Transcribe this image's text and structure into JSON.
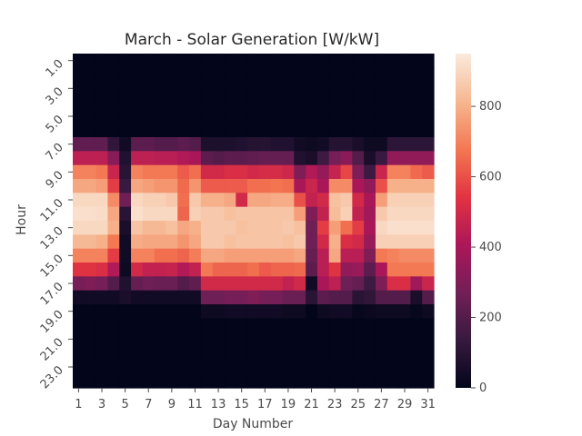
{
  "chart_data": {
    "type": "heatmap",
    "title": "March - Solar Generation [W/kW]",
    "xlabel": "Day Number",
    "ylabel": "Hour",
    "x": [
      1,
      2,
      3,
      4,
      5,
      6,
      7,
      8,
      9,
      10,
      11,
      12,
      13,
      14,
      15,
      16,
      17,
      18,
      19,
      20,
      21,
      22,
      23,
      24,
      25,
      26,
      27,
      28,
      29,
      30,
      31
    ],
    "x_tick_labels": [
      "1",
      "3",
      "5",
      "7",
      "9",
      "11",
      "13",
      "15",
      "17",
      "19",
      "21",
      "23",
      "25",
      "27",
      "29",
      "31"
    ],
    "y": [
      1,
      2,
      3,
      4,
      5,
      6,
      7,
      8,
      9,
      10,
      11,
      12,
      13,
      14,
      15,
      16,
      17,
      18,
      19,
      20,
      21,
      22,
      23,
      24
    ],
    "y_tick_labels": [
      "1.0",
      "3.0",
      "5.0",
      "7.0",
      "9.0",
      "11.0",
      "13.0",
      "15.0",
      "17.0",
      "19.0",
      "21.0",
      "23.0"
    ],
    "colorbar": {
      "range": [
        0,
        950
      ],
      "ticks": [
        0,
        200,
        400,
        600,
        800
      ],
      "tick_labels": [
        "0",
        "200",
        "400",
        "600",
        "800"
      ],
      "colormap": "rocket"
    },
    "values": [
      [
        0,
        0,
        0,
        0,
        0,
        0,
        0,
        0,
        0,
        0,
        0,
        0,
        0,
        0,
        0,
        0,
        0,
        0,
        0,
        0,
        0,
        0,
        0,
        0,
        0,
        0,
        0,
        0,
        0,
        0,
        0
      ],
      [
        0,
        0,
        0,
        0,
        0,
        0,
        0,
        0,
        0,
        0,
        0,
        0,
        0,
        0,
        0,
        0,
        0,
        0,
        0,
        0,
        0,
        0,
        0,
        0,
        0,
        0,
        0,
        0,
        0,
        0,
        0
      ],
      [
        0,
        0,
        0,
        0,
        0,
        0,
        0,
        0,
        0,
        0,
        0,
        0,
        0,
        0,
        0,
        0,
        0,
        0,
        0,
        0,
        0,
        0,
        0,
        0,
        0,
        0,
        0,
        0,
        0,
        0,
        0
      ],
      [
        0,
        0,
        0,
        0,
        0,
        0,
        0,
        0,
        0,
        0,
        0,
        0,
        0,
        0,
        0,
        0,
        0,
        0,
        0,
        0,
        0,
        0,
        0,
        0,
        0,
        0,
        0,
        0,
        0,
        0,
        0
      ],
      [
        0,
        0,
        0,
        0,
        0,
        0,
        0,
        0,
        0,
        0,
        0,
        0,
        0,
        0,
        0,
        0,
        0,
        0,
        0,
        0,
        0,
        0,
        0,
        0,
        0,
        0,
        0,
        0,
        0,
        0,
        0
      ],
      [
        0,
        0,
        0,
        0,
        0,
        0,
        0,
        0,
        0,
        0,
        0,
        0,
        0,
        0,
        0,
        0,
        0,
        0,
        0,
        0,
        0,
        0,
        0,
        0,
        0,
        0,
        0,
        0,
        0,
        0,
        0
      ],
      [
        230,
        230,
        230,
        120,
        40,
        220,
        220,
        200,
        200,
        220,
        200,
        70,
        70,
        70,
        80,
        90,
        90,
        80,
        80,
        40,
        30,
        40,
        90,
        90,
        60,
        30,
        30,
        110,
        110,
        110,
        110
      ],
      [
        450,
        450,
        450,
        320,
        80,
        450,
        450,
        440,
        440,
        420,
        400,
        220,
        200,
        220,
        220,
        230,
        240,
        240,
        240,
        80,
        60,
        150,
        280,
        330,
        200,
        60,
        140,
        340,
        340,
        340,
        340
      ],
      [
        700,
        700,
        680,
        480,
        100,
        700,
        680,
        680,
        680,
        620,
        660,
        500,
        500,
        520,
        520,
        500,
        510,
        510,
        490,
        300,
        420,
        350,
        470,
        580,
        300,
        150,
        480,
        700,
        700,
        650,
        620
      ],
      [
        780,
        780,
        760,
        560,
        140,
        780,
        760,
        740,
        740,
        650,
        740,
        620,
        620,
        620,
        620,
        660,
        660,
        670,
        660,
        400,
        480,
        400,
        720,
        720,
        400,
        340,
        600,
        800,
        800,
        800,
        800
      ],
      [
        900,
        900,
        900,
        720,
        260,
        900,
        880,
        880,
        860,
        660,
        860,
        800,
        800,
        780,
        500,
        780,
        780,
        790,
        790,
        600,
        460,
        500,
        840,
        860,
        500,
        400,
        760,
        880,
        880,
        880,
        880
      ],
      [
        920,
        920,
        910,
        780,
        100,
        920,
        900,
        900,
        900,
        640,
        880,
        860,
        860,
        840,
        850,
        850,
        850,
        850,
        850,
        760,
        300,
        460,
        830,
        880,
        460,
        380,
        860,
        900,
        900,
        900,
        900
      ],
      [
        900,
        900,
        900,
        800,
        60,
        850,
        820,
        820,
        840,
        780,
        800,
        860,
        860,
        860,
        840,
        850,
        850,
        850,
        860,
        840,
        260,
        560,
        760,
        660,
        560,
        400,
        900,
        920,
        920,
        920,
        920
      ],
      [
        820,
        820,
        800,
        680,
        40,
        790,
        780,
        780,
        780,
        740,
        780,
        860,
        860,
        840,
        850,
        850,
        850,
        850,
        840,
        860,
        260,
        500,
        800,
        520,
        500,
        360,
        880,
        880,
        880,
        880,
        880
      ],
      [
        700,
        700,
        700,
        560,
        40,
        700,
        700,
        660,
        660,
        640,
        690,
        780,
        780,
        760,
        760,
        760,
        760,
        760,
        760,
        780,
        240,
        440,
        780,
        440,
        440,
        300,
        680,
        700,
        720,
        720,
        720
      ],
      [
        540,
        540,
        520,
        420,
        30,
        500,
        460,
        460,
        470,
        420,
        460,
        680,
        640,
        640,
        640,
        660,
        620,
        640,
        640,
        650,
        220,
        440,
        540,
        340,
        360,
        220,
        400,
        680,
        680,
        680,
        680
      ],
      [
        280,
        300,
        280,
        200,
        80,
        240,
        260,
        250,
        250,
        200,
        230,
        500,
        500,
        500,
        500,
        500,
        500,
        500,
        460,
        500,
        40,
        400,
        450,
        260,
        240,
        150,
        300,
        520,
        520,
        380,
        480
      ],
      [
        40,
        40,
        40,
        40,
        60,
        40,
        40,
        40,
        40,
        40,
        40,
        260,
        260,
        280,
        280,
        300,
        280,
        280,
        250,
        250,
        100,
        220,
        200,
        200,
        100,
        120,
        200,
        200,
        200,
        60,
        200
      ],
      [
        0,
        0,
        0,
        0,
        0,
        0,
        0,
        0,
        0,
        0,
        0,
        30,
        30,
        40,
        40,
        40,
        40,
        40,
        30,
        30,
        0,
        30,
        40,
        40,
        10,
        20,
        30,
        30,
        30,
        10,
        30
      ],
      [
        0,
        0,
        0,
        0,
        0,
        0,
        0,
        0,
        0,
        0,
        0,
        0,
        0,
        0,
        0,
        0,
        0,
        0,
        0,
        0,
        0,
        0,
        0,
        0,
        0,
        0,
        0,
        0,
        0,
        0,
        0
      ],
      [
        0,
        0,
        0,
        0,
        0,
        0,
        0,
        0,
        0,
        0,
        0,
        0,
        0,
        0,
        0,
        0,
        0,
        0,
        0,
        0,
        0,
        0,
        0,
        0,
        0,
        0,
        0,
        0,
        0,
        0,
        0
      ],
      [
        0,
        0,
        0,
        0,
        0,
        0,
        0,
        0,
        0,
        0,
        0,
        0,
        0,
        0,
        0,
        0,
        0,
        0,
        0,
        0,
        0,
        0,
        0,
        0,
        0,
        0,
        0,
        0,
        0,
        0,
        0
      ],
      [
        0,
        0,
        0,
        0,
        0,
        0,
        0,
        0,
        0,
        0,
        0,
        0,
        0,
        0,
        0,
        0,
        0,
        0,
        0,
        0,
        0,
        0,
        0,
        0,
        0,
        0,
        0,
        0,
        0,
        0,
        0
      ],
      [
        0,
        0,
        0,
        0,
        0,
        0,
        0,
        0,
        0,
        0,
        0,
        0,
        0,
        0,
        0,
        0,
        0,
        0,
        0,
        0,
        0,
        0,
        0,
        0,
        0,
        0,
        0,
        0,
        0,
        0,
        0
      ]
    ],
    "grid": false,
    "legend": "colorbar-right"
  }
}
